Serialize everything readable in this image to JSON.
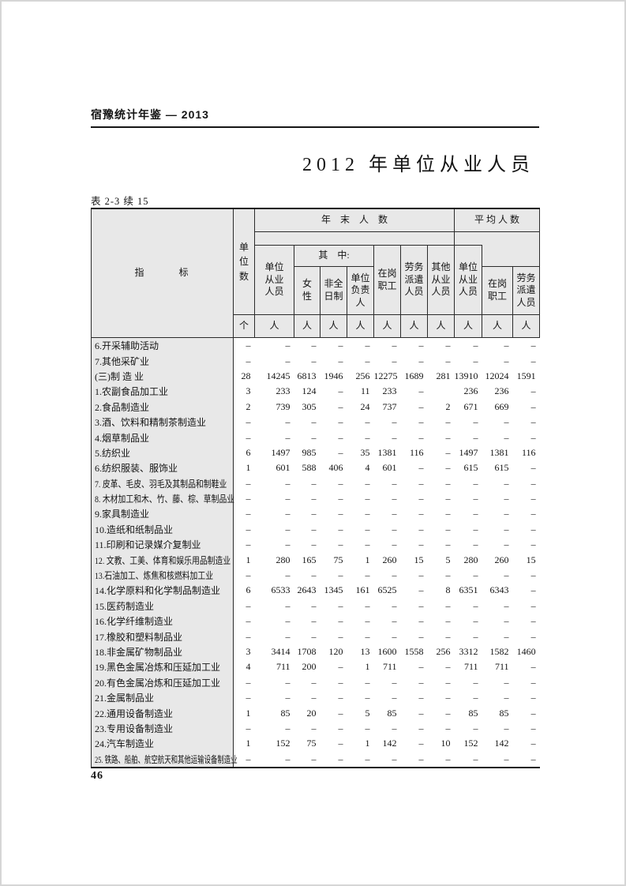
{
  "page": {
    "header": "宿豫统计年鉴 — 2013",
    "title": "2012 年单位从业人员",
    "table_label": "表 2-3 续 15",
    "page_number": "46"
  },
  "colors": {
    "paper": "#ffffff",
    "header_fill": "#e8e8e8",
    "border": "#2b2b2b",
    "text": "#141414"
  },
  "table": {
    "header": {
      "indicator": "指　　　标",
      "unit_count": "单位数",
      "group_year_end": "年　末　人　数",
      "group_average": "平 均 人 数",
      "col_unit_employed": "单位\n从业\n人员",
      "among_label": "其　中:",
      "col_female": "女\n性",
      "col_part_time": "非全\n日制",
      "col_unit_head": "单位\n负责\n人",
      "col_on_duty": "在岗\n职工",
      "col_dispatch": "劳务\n派遣\n人员",
      "col_other": "其他\n从业\n人员",
      "avg_unit_employed": "单位\n从业\n人员",
      "avg_on_duty": "在岗\n职工",
      "avg_dispatch": "劳务\n派遣\n人员",
      "units": [
        "个",
        "人",
        "人",
        "人",
        "人",
        "人",
        "人",
        "人",
        "人",
        "人",
        "人"
      ]
    },
    "rows": [
      {
        "label": "6.开采辅助活动",
        "values": [
          "–",
          "–",
          "–",
          "–",
          "–",
          "–",
          "–",
          "–",
          "–",
          "–",
          "–"
        ]
      },
      {
        "label": "7.其他采矿业",
        "values": [
          "–",
          "–",
          "–",
          "–",
          "–",
          "–",
          "–",
          "–",
          "–",
          "–",
          "–"
        ]
      },
      {
        "label": "(三)制 造 业",
        "values": [
          "28",
          "14245",
          "6813",
          "1946",
          "256",
          "12275",
          "1689",
          "281",
          "13910",
          "12024",
          "1591"
        ]
      },
      {
        "label": "1.农副食品加工业",
        "values": [
          "3",
          "233",
          "124",
          "–",
          "11",
          "233",
          "–",
          "",
          "236",
          "236",
          "–"
        ]
      },
      {
        "label": "2.食品制造业",
        "values": [
          "2",
          "739",
          "305",
          "–",
          "24",
          "737",
          "–",
          "2",
          "671",
          "669",
          "–"
        ]
      },
      {
        "label": "3.酒、饮料和精制茶制造业",
        "values": [
          "–",
          "–",
          "–",
          "–",
          "–",
          "–",
          "–",
          "–",
          "–",
          "–",
          "–"
        ]
      },
      {
        "label": "4.烟草制品业",
        "values": [
          "–",
          "–",
          "–",
          "–",
          "–",
          "–",
          "–",
          "–",
          "–",
          "–",
          "–"
        ]
      },
      {
        "label": "5.纺织业",
        "values": [
          "6",
          "1497",
          "985",
          "–",
          "35",
          "1381",
          "116",
          "–",
          "1497",
          "1381",
          "116"
        ]
      },
      {
        "label": "6.纺织服装、服饰业",
        "values": [
          "1",
          "601",
          "588",
          "406",
          "4",
          "601",
          "–",
          "–",
          "615",
          "615",
          "–"
        ]
      },
      {
        "label": "7. 皮革、毛皮、羽毛及其制品和制鞋业",
        "values": [
          "–",
          "–",
          "–",
          "–",
          "–",
          "–",
          "–",
          "–",
          "–",
          "–",
          "–"
        ]
      },
      {
        "label": "8. 木材加工和木、竹、藤、棕、草制品业",
        "values": [
          "–",
          "–",
          "–",
          "–",
          "–",
          "–",
          "–",
          "–",
          "–",
          "–",
          "–"
        ]
      },
      {
        "label": "9.家具制造业",
        "values": [
          "–",
          "–",
          "–",
          "–",
          "–",
          "–",
          "–",
          "–",
          "–",
          "–",
          "–"
        ]
      },
      {
        "label": "10.造纸和纸制品业",
        "values": [
          "–",
          "–",
          "–",
          "–",
          "–",
          "–",
          "–",
          "–",
          "–",
          "–",
          "–"
        ]
      },
      {
        "label": "11.印刷和记录媒介复制业",
        "values": [
          "–",
          "–",
          "–",
          "–",
          "–",
          "–",
          "–",
          "–",
          "–",
          "–",
          "–"
        ]
      },
      {
        "label": "12. 文教、工美、体育和娱乐用品制造业",
        "values": [
          "1",
          "280",
          "165",
          "75",
          "1",
          "260",
          "15",
          "5",
          "280",
          "260",
          "15"
        ]
      },
      {
        "label": "13.石油加工、炼焦和核燃料加工业",
        "values": [
          "–",
          "–",
          "–",
          "–",
          "–",
          "–",
          "–",
          "–",
          "–",
          "–",
          "–"
        ]
      },
      {
        "label": "14.化学原料和化学制品制造业",
        "values": [
          "6",
          "6533",
          "2643",
          "1345",
          "161",
          "6525",
          "–",
          "8",
          "6351",
          "6343",
          "–"
        ]
      },
      {
        "label": "15.医药制造业",
        "values": [
          "–",
          "–",
          "–",
          "–",
          "–",
          "–",
          "–",
          "–",
          "–",
          "–",
          "–"
        ]
      },
      {
        "label": "16.化学纤维制造业",
        "values": [
          "–",
          "–",
          "–",
          "–",
          "–",
          "–",
          "–",
          "–",
          "–",
          "–",
          "–"
        ]
      },
      {
        "label": "17.橡胶和塑料制品业",
        "values": [
          "–",
          "–",
          "–",
          "–",
          "–",
          "–",
          "–",
          "–",
          "–",
          "–",
          "–"
        ]
      },
      {
        "label": "18.非金属矿物制品业",
        "values": [
          "3",
          "3414",
          "1708",
          "120",
          "13",
          "1600",
          "1558",
          "256",
          "3312",
          "1582",
          "1460"
        ]
      },
      {
        "label": "19.黑色金属冶炼和压延加工业",
        "values": [
          "4",
          "711",
          "200",
          "–",
          "1",
          "711",
          "–",
          "–",
          "711",
          "711",
          "–"
        ]
      },
      {
        "label": "20.有色金属冶炼和压延加工业",
        "values": [
          "–",
          "–",
          "–",
          "–",
          "–",
          "–",
          "–",
          "–",
          "–",
          "–",
          "–"
        ]
      },
      {
        "label": "21.金属制品业",
        "values": [
          "–",
          "–",
          "–",
          "–",
          "–",
          "–",
          "–",
          "–",
          "–",
          "–",
          "–"
        ]
      },
      {
        "label": "22.通用设备制造业",
        "values": [
          "1",
          "85",
          "20",
          "–",
          "5",
          "85",
          "–",
          "–",
          "85",
          "85",
          "–"
        ]
      },
      {
        "label": "23.专用设备制造业",
        "values": [
          "–",
          "–",
          "–",
          "–",
          "–",
          "–",
          "–",
          "–",
          "–",
          "–",
          "–"
        ]
      },
      {
        "label": "24.汽车制造业",
        "values": [
          "1",
          "152",
          "75",
          "–",
          "1",
          "142",
          "–",
          "10",
          "152",
          "142",
          "–"
        ]
      },
      {
        "label": "25. 铁路、船舶、航空航天和其他运输设备制造业",
        "values": [
          "–",
          "–",
          "–",
          "–",
          "–",
          "–",
          "–",
          "–",
          "–",
          "–",
          "–"
        ]
      }
    ]
  }
}
